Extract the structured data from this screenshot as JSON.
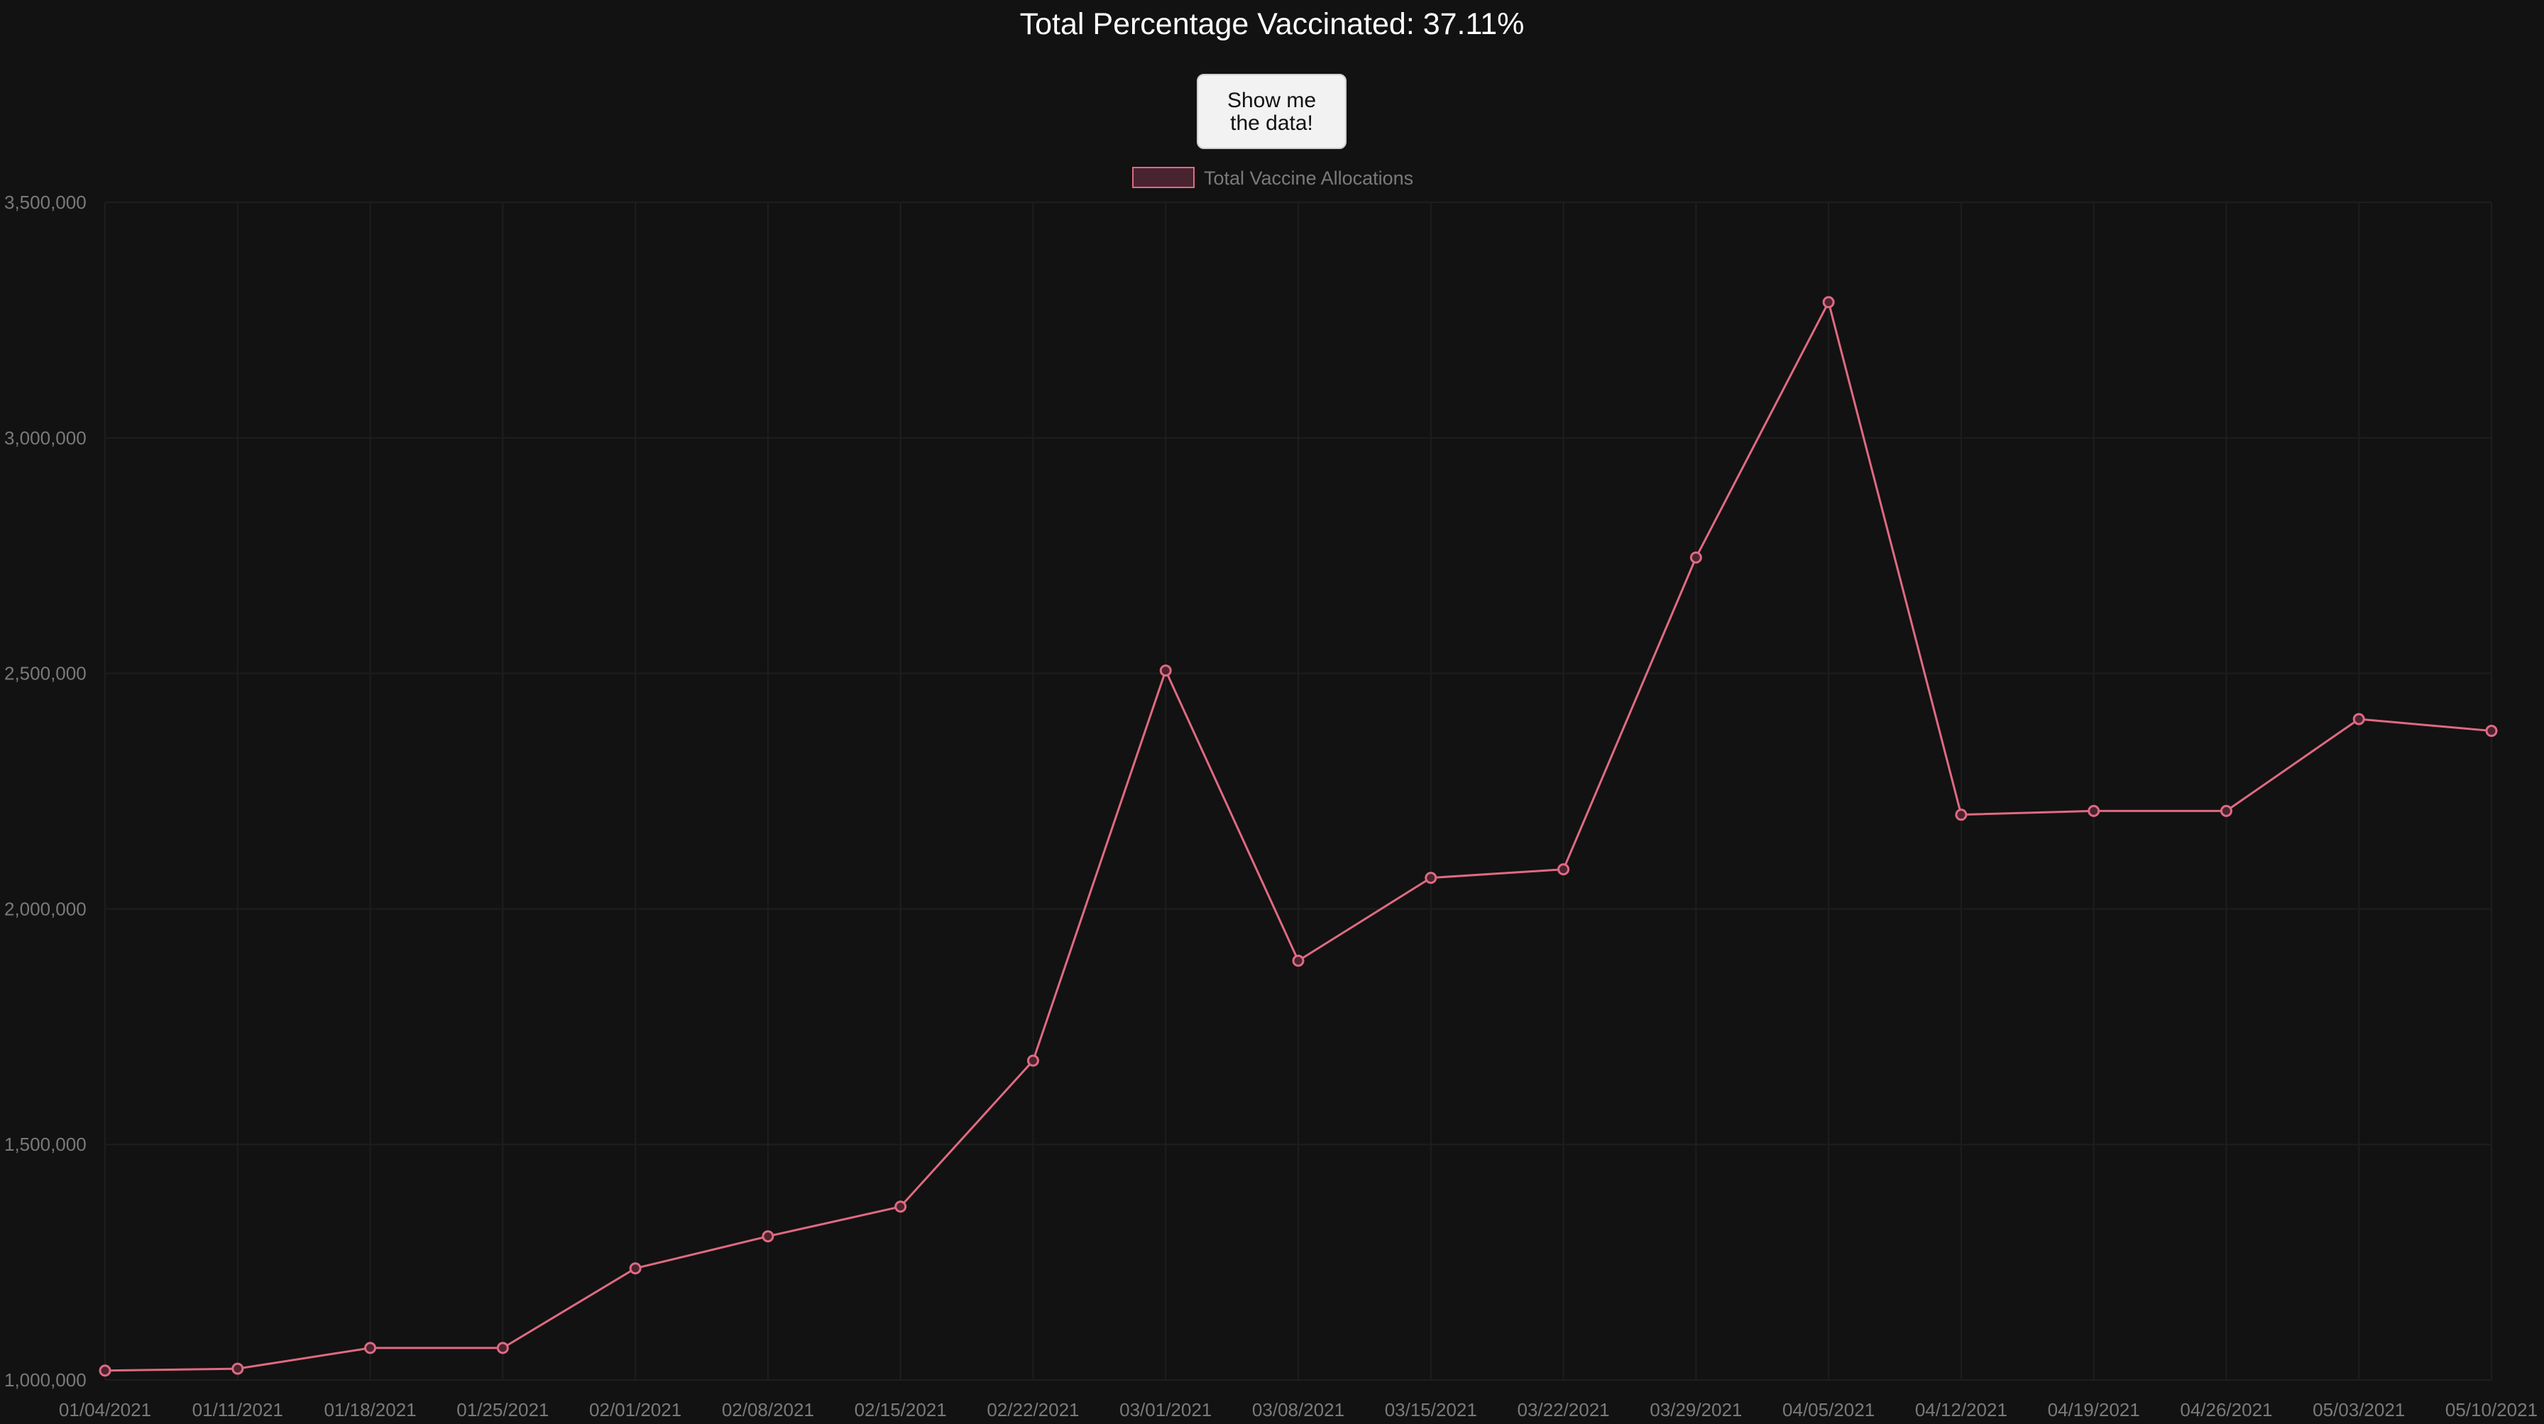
{
  "header": {
    "title": "Total Percentage Vaccinated: 37.11%"
  },
  "controls": {
    "show_data_label": "Show me the data!"
  },
  "colors": {
    "background": "#121212",
    "series_line": "#e06a82",
    "series_fill": "#4a2330",
    "axis_text": "#7a7a7a",
    "grid": "#1e1e1e"
  },
  "chart_data": {
    "type": "line",
    "x": [
      "01/04/2021",
      "01/11/2021",
      "01/18/2021",
      "01/25/2021",
      "02/01/2021",
      "02/08/2021",
      "02/15/2021",
      "02/22/2021",
      "03/01/2021",
      "03/08/2021",
      "03/15/2021",
      "03/22/2021",
      "03/29/2021",
      "04/05/2021",
      "04/12/2021",
      "04/19/2021",
      "04/26/2021",
      "05/03/2021",
      "05/10/2021"
    ],
    "series": [
      {
        "name": "Total Vaccine Allocations",
        "values": [
          1020000,
          1024000,
          1068000,
          1068000,
          1237000,
          1305000,
          1368000,
          1678000,
          2506000,
          1890000,
          2066000,
          2084000,
          2746000,
          3288000,
          2200000,
          2208000,
          2208000,
          2403000,
          2378000
        ]
      }
    ],
    "yticks": [
      "1,000,000",
      "1,500,000",
      "2,000,000",
      "2,500,000",
      "3,000,000",
      "3,500,000"
    ],
    "ylim": [
      1000000,
      3500000
    ],
    "legend": "top-center",
    "grid": true
  }
}
